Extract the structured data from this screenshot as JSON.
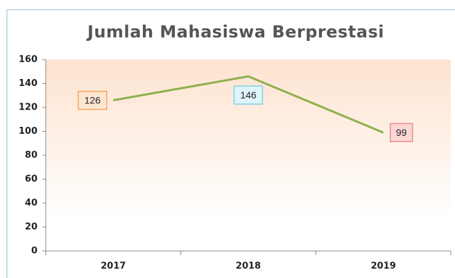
{
  "chart_data": {
    "type": "line",
    "title": "Jumlah Mahasiswa Berprestasi",
    "categories": [
      "2017",
      "2018",
      "2019"
    ],
    "series": [
      {
        "color": "#8db04a",
        "values": [
          126,
          146,
          99
        ]
      }
    ],
    "label_colors": [
      "#f4a460",
      "#7fd3e8",
      "#f08a8a"
    ],
    "label_fills": [
      "#fde6d2",
      "#dff4fa",
      "#fbd7d7"
    ],
    "ylim": [
      0,
      160
    ],
    "yticks": [
      0,
      20,
      40,
      60,
      80,
      100,
      120,
      140,
      160
    ],
    "grid": false
  }
}
